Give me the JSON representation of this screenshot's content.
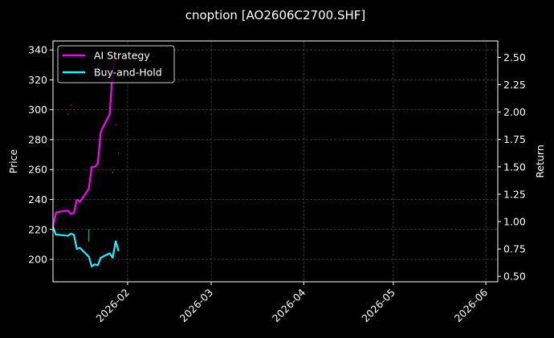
{
  "chart_data": {
    "type": "line",
    "title": "cnoption [AO2606C2700.SHF]",
    "ylabel": "Price",
    "y2label": "Return",
    "xlim": [
      "2026-01-07",
      "2026-06-05"
    ],
    "ylim": [
      185,
      346
    ],
    "y2lim": [
      0.45,
      2.65
    ],
    "x_ticks": [
      "2026-02",
      "2026-03",
      "2026-04",
      "2026-05",
      "2026-06"
    ],
    "y_ticks": [
      200,
      220,
      240,
      260,
      280,
      300,
      320,
      340
    ],
    "y2_ticks": [
      "0.50",
      "0.75",
      "1.00",
      "1.25",
      "1.50",
      "1.75",
      "2.00",
      "2.25",
      "2.50"
    ],
    "grid": true,
    "legend_position": "top-left",
    "background": "#000000",
    "series": [
      {
        "name": "AI Strategy",
        "axis": "right",
        "color": "#ff00ff",
        "x": [
          "2026-01-07",
          "2026-01-08",
          "2026-01-09",
          "2026-01-12",
          "2026-01-13",
          "2026-01-14",
          "2026-01-15",
          "2026-01-16",
          "2026-01-19",
          "2026-01-20",
          "2026-01-21",
          "2026-01-22",
          "2026-01-23",
          "2026-01-26",
          "2026-01-27",
          "2026-01-28",
          "2026-01-29"
        ],
        "values": [
          0.95,
          1.08,
          1.09,
          1.1,
          1.07,
          1.08,
          1.2,
          1.18,
          1.3,
          1.5,
          1.5,
          1.53,
          1.82,
          1.98,
          2.38,
          2.5,
          2.48
        ]
      },
      {
        "name": "Buy-and-Hold",
        "axis": "right",
        "color": "#22eeff",
        "x": [
          "2026-01-07",
          "2026-01-08",
          "2026-01-09",
          "2026-01-12",
          "2026-01-13",
          "2026-01-14",
          "2026-01-15",
          "2026-01-16",
          "2026-01-19",
          "2026-01-20",
          "2026-01-21",
          "2026-01-22",
          "2026-01-23",
          "2026-01-26",
          "2026-01-27",
          "2026-01-28",
          "2026-01-29"
        ],
        "values": [
          0.95,
          0.88,
          0.88,
          0.87,
          0.89,
          0.88,
          0.75,
          0.76,
          0.68,
          0.59,
          0.61,
          0.6,
          0.67,
          0.71,
          0.67,
          0.82,
          0.73
        ]
      }
    ],
    "price_marks": [
      {
        "x": "2026-01-12",
        "y": 297,
        "color": "#cc1111"
      },
      {
        "x": "2026-01-13",
        "y": 303,
        "color": "#cc1111"
      },
      {
        "x": "2026-01-19",
        "y": 216,
        "y_low": 212,
        "y_high": 220,
        "color": "#22aa22"
      },
      {
        "x": "2026-01-27",
        "y": 258,
        "color": "#cc1111"
      },
      {
        "x": "2026-01-28",
        "y": 290,
        "color": "#cc1111"
      },
      {
        "x": "2026-01-29",
        "y": 271,
        "color": "#cc1111"
      }
    ]
  }
}
